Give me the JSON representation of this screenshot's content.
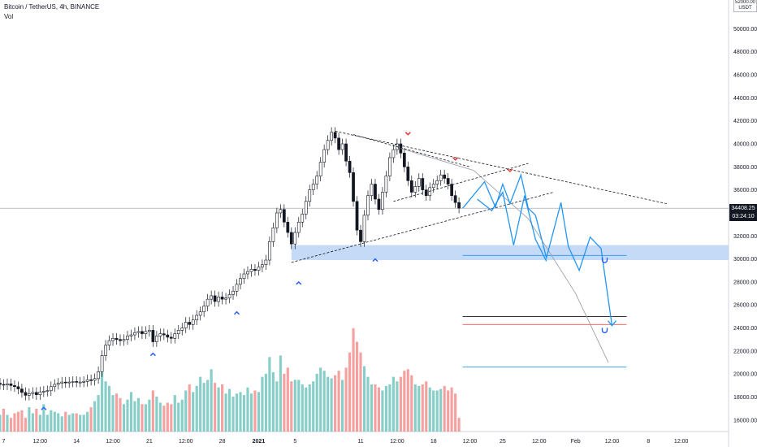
{
  "legend": {
    "title": "Bitcoin / TetherUS, 4h, BINANCE",
    "volume_label": "Vol"
  },
  "price_badge": {
    "price": "34408.25",
    "timer": "03:24:10"
  },
  "corner": {
    "top_label": "52000.00",
    "currency": "USDT"
  },
  "colors": {
    "up": "#26a69a",
    "down": "#ef5350",
    "projection": "#2196f3",
    "zone": "#bbd4f5",
    "marker_up": "#2962ff",
    "marker_down": "#e53935"
  },
  "chart_data": {
    "type": "candlestick",
    "symbol": "Bitcoin / TetherUS",
    "interval": "4h",
    "exchange": "BINANCE",
    "ylim": [
      15000,
      52500
    ],
    "xlim": [
      0,
      200
    ],
    "y_ticks": [
      "16000.00",
      "18000.00",
      "20000.00",
      "22000.00",
      "24000.00",
      "26000.00",
      "28000.00",
      "30000.00",
      "32000.00",
      "34000.00",
      "36000.00",
      "38000.00",
      "40000.00",
      "42000.00",
      "44000.00",
      "46000.00",
      "48000.00",
      "50000.00"
    ],
    "x_ticks": [
      {
        "label": "7",
        "x": 1
      },
      {
        "label": "12:00",
        "x": 11
      },
      {
        "label": "14",
        "x": 21
      },
      {
        "label": "12:00",
        "x": 31
      },
      {
        "label": "21",
        "x": 41
      },
      {
        "label": "12:00",
        "x": 51
      },
      {
        "label": "28",
        "x": 61
      },
      {
        "label": "2021",
        "x": 71
      },
      {
        "label": "5",
        "x": 81
      },
      {
        "label": "11",
        "x": 99
      },
      {
        "label": "12:00",
        "x": 109
      },
      {
        "label": "18",
        "x": 119
      },
      {
        "label": "12:00",
        "x": 129
      },
      {
        "label": "25",
        "x": 138
      },
      {
        "label": "12:00",
        "x": 148
      },
      {
        "label": "Feb",
        "x": 158
      },
      {
        "label": "12:00",
        "x": 168
      },
      {
        "label": "8",
        "x": 178
      },
      {
        "label": "12:00",
        "x": 187
      }
    ],
    "price_series": [
      [
        0,
        19100
      ],
      [
        1,
        19050
      ],
      [
        2,
        19150
      ],
      [
        3,
        19000
      ],
      [
        4,
        18900
      ],
      [
        5,
        18700
      ],
      [
        6,
        18400
      ],
      [
        7,
        18150
      ],
      [
        8,
        18300
      ],
      [
        9,
        18400
      ],
      [
        10,
        18200
      ],
      [
        11,
        18450
      ],
      [
        12,
        18500
      ],
      [
        13,
        18550
      ],
      [
        14,
        18900
      ],
      [
        15,
        19100
      ],
      [
        16,
        19200
      ],
      [
        17,
        19300
      ],
      [
        18,
        19250
      ],
      [
        19,
        19300
      ],
      [
        20,
        19350
      ],
      [
        21,
        19300
      ],
      [
        22,
        19300
      ],
      [
        23,
        19350
      ],
      [
        24,
        19500
      ],
      [
        25,
        19450
      ],
      [
        26,
        19600
      ],
      [
        27,
        20200
      ],
      [
        28,
        21600
      ],
      [
        29,
        22500
      ],
      [
        30,
        22900
      ],
      [
        31,
        23100
      ],
      [
        32,
        23000
      ],
      [
        33,
        22900
      ],
      [
        34,
        23000
      ],
      [
        35,
        23300
      ],
      [
        36,
        23400
      ],
      [
        37,
        23600
      ],
      [
        38,
        23700
      ],
      [
        39,
        23500
      ],
      [
        40,
        23700
      ],
      [
        41,
        23800
      ],
      [
        42,
        22800
      ],
      [
        43,
        23300
      ],
      [
        44,
        23500
      ],
      [
        45,
        23400
      ],
      [
        46,
        23200
      ],
      [
        47,
        23100
      ],
      [
        48,
        23500
      ],
      [
        49,
        23800
      ],
      [
        50,
        24000
      ],
      [
        51,
        24500
      ],
      [
        52,
        24300
      ],
      [
        53,
        24700
      ],
      [
        54,
        25100
      ],
      [
        55,
        25400
      ],
      [
        56,
        25900
      ],
      [
        57,
        26500
      ],
      [
        58,
        26800
      ],
      [
        59,
        26300
      ],
      [
        60,
        26700
      ],
      [
        61,
        26500
      ],
      [
        62,
        26600
      ],
      [
        63,
        26900
      ],
      [
        64,
        27200
      ],
      [
        65,
        27800
      ],
      [
        66,
        28300
      ],
      [
        67,
        28700
      ],
      [
        68,
        28900
      ],
      [
        69,
        29100
      ],
      [
        70,
        29000
      ],
      [
        71,
        29300
      ],
      [
        72,
        29500
      ],
      [
        73,
        29900
      ],
      [
        74,
        31500
      ],
      [
        75,
        32700
      ],
      [
        76,
        34000
      ],
      [
        77,
        34300
      ],
      [
        78,
        33200
      ],
      [
        79,
        32300
      ],
      [
        80,
        31300
      ],
      [
        81,
        32300
      ],
      [
        82,
        33200
      ],
      [
        83,
        33900
      ],
      [
        84,
        35000
      ],
      [
        85,
        36000
      ],
      [
        86,
        36500
      ],
      [
        87,
        37200
      ],
      [
        88,
        38400
      ],
      [
        89,
        39500
      ],
      [
        90,
        40300
      ],
      [
        91,
        41000
      ],
      [
        92,
        40500
      ],
      [
        93,
        39500
      ],
      [
        94,
        40000
      ],
      [
        95,
        38500
      ],
      [
        96,
        37500
      ],
      [
        97,
        35000
      ],
      [
        98,
        32500
      ],
      [
        99,
        31500
      ],
      [
        100,
        33800
      ],
      [
        101,
        35500
      ],
      [
        102,
        36500
      ],
      [
        103,
        35200
      ],
      [
        104,
        34300
      ],
      [
        105,
        35800
      ],
      [
        106,
        37200
      ],
      [
        107,
        38800
      ],
      [
        108,
        39500
      ],
      [
        109,
        40000
      ],
      [
        110,
        39200
      ],
      [
        111,
        38000
      ],
      [
        112,
        36800
      ],
      [
        113,
        35800
      ],
      [
        114,
        36300
      ],
      [
        115,
        37000
      ],
      [
        116,
        36000
      ],
      [
        117,
        35500
      ],
      [
        118,
        36200
      ],
      [
        119,
        36500
      ],
      [
        120,
        36800
      ],
      [
        121,
        37300
      ],
      [
        122,
        37000
      ],
      [
        123,
        36500
      ],
      [
        124,
        35500
      ],
      [
        125,
        34900
      ],
      [
        126,
        34408
      ]
    ],
    "volume_max": 7000,
    "volume_series": [
      [
        0,
        1100
      ],
      [
        1,
        1500
      ],
      [
        2,
        1100
      ],
      [
        3,
        900
      ],
      [
        4,
        1200
      ],
      [
        5,
        1300
      ],
      [
        6,
        1400
      ],
      [
        7,
        900
      ],
      [
        8,
        1600
      ],
      [
        9,
        1200
      ],
      [
        10,
        1500
      ],
      [
        11,
        1100
      ],
      [
        12,
        1800
      ],
      [
        13,
        1100
      ],
      [
        14,
        1400
      ],
      [
        15,
        1300
      ],
      [
        16,
        1200
      ],
      [
        17,
        1000
      ],
      [
        18,
        1300
      ],
      [
        19,
        1100
      ],
      [
        20,
        1200
      ],
      [
        21,
        1200
      ],
      [
        22,
        1100
      ],
      [
        23,
        1100
      ],
      [
        24,
        1300
      ],
      [
        25,
        1600
      ],
      [
        26,
        2000
      ],
      [
        27,
        2400
      ],
      [
        28,
        3900
      ],
      [
        29,
        3300
      ],
      [
        30,
        3000
      ],
      [
        31,
        2400
      ],
      [
        32,
        2500
      ],
      [
        33,
        2200
      ],
      [
        34,
        1800
      ],
      [
        35,
        2100
      ],
      [
        36,
        2600
      ],
      [
        37,
        2000
      ],
      [
        38,
        2200
      ],
      [
        39,
        1800
      ],
      [
        40,
        1800
      ],
      [
        41,
        2100
      ],
      [
        42,
        2700
      ],
      [
        43,
        2300
      ],
      [
        44,
        1900
      ],
      [
        45,
        1700
      ],
      [
        46,
        1900
      ],
      [
        47,
        1800
      ],
      [
        48,
        2400
      ],
      [
        49,
        1900
      ],
      [
        50,
        2100
      ],
      [
        51,
        2700
      ],
      [
        52,
        3100
      ],
      [
        53,
        2600
      ],
      [
        54,
        3000
      ],
      [
        55,
        3600
      ],
      [
        56,
        3200
      ],
      [
        57,
        3400
      ],
      [
        58,
        4100
      ],
      [
        59,
        3200
      ],
      [
        60,
        2900
      ],
      [
        61,
        3100
      ],
      [
        62,
        2500
      ],
      [
        63,
        2800
      ],
      [
        64,
        2300
      ],
      [
        65,
        2500
      ],
      [
        66,
        2600
      ],
      [
        67,
        2400
      ],
      [
        68,
        2900
      ],
      [
        69,
        2500
      ],
      [
        70,
        2700
      ],
      [
        71,
        2600
      ],
      [
        72,
        3600
      ],
      [
        73,
        3800
      ],
      [
        74,
        4900
      ],
      [
        75,
        3900
      ],
      [
        76,
        3300
      ],
      [
        77,
        5000
      ],
      [
        78,
        3800
      ],
      [
        79,
        4200
      ],
      [
        80,
        3300
      ],
      [
        81,
        3400
      ],
      [
        82,
        3400
      ],
      [
        83,
        3100
      ],
      [
        84,
        2900
      ],
      [
        85,
        3100
      ],
      [
        86,
        3300
      ],
      [
        87,
        3800
      ],
      [
        88,
        4200
      ],
      [
        89,
        4000
      ],
      [
        90,
        3600
      ],
      [
        91,
        3500
      ],
      [
        92,
        3700
      ],
      [
        93,
        4000
      ],
      [
        94,
        3400
      ],
      [
        95,
        4200
      ],
      [
        96,
        5200
      ],
      [
        97,
        6800
      ],
      [
        98,
        5900
      ],
      [
        99,
        5200
      ],
      [
        100,
        4300
      ],
      [
        101,
        3600
      ],
      [
        102,
        3100
      ],
      [
        103,
        3100
      ],
      [
        104,
        2900
      ],
      [
        105,
        2700
      ],
      [
        106,
        3000
      ],
      [
        107,
        3100
      ],
      [
        108,
        3600
      ],
      [
        109,
        3300
      ],
      [
        110,
        3600
      ],
      [
        111,
        4000
      ],
      [
        112,
        4100
      ],
      [
        113,
        3700
      ],
      [
        114,
        3100
      ],
      [
        115,
        3000
      ],
      [
        116,
        3100
      ],
      [
        117,
        3300
      ],
      [
        118,
        2900
      ],
      [
        119,
        2700
      ],
      [
        120,
        2700
      ],
      [
        121,
        2800
      ],
      [
        122,
        3000
      ],
      [
        123,
        2700
      ],
      [
        124,
        2900
      ],
      [
        125,
        2500
      ],
      [
        126,
        900
      ]
    ],
    "trendlines": [
      {
        "name": "upper-resistance",
        "points": [
          [
            92,
            41100
          ],
          [
            183,
            34800
          ]
        ]
      },
      {
        "name": "lower-support",
        "points": [
          [
            80,
            29700
          ],
          [
            152,
            35800
          ]
        ]
      },
      {
        "name": "inner-upper",
        "points": [
          [
            97,
            40800
          ],
          [
            129,
            38000
          ]
        ]
      },
      {
        "name": "inner-lower",
        "points": [
          [
            108,
            35000
          ],
          [
            145,
            38300
          ]
        ]
      }
    ],
    "curve": {
      "name": "parabolic-arc",
      "points": [
        [
          110,
          39600
        ],
        [
          130,
          37700
        ],
        [
          145,
          33500
        ],
        [
          158,
          27000
        ],
        [
          167,
          21000
        ]
      ]
    },
    "zones": [
      {
        "name": "support-zone",
        "x_from": 80,
        "x_to": 200,
        "y_from": 29900,
        "y_to": 31200
      }
    ],
    "levels": [
      {
        "name": "zone-mid-line",
        "price": 30300,
        "x_from": 127,
        "x_to": 172,
        "color": "#2196f3"
      },
      {
        "name": "level-black",
        "price": 25000,
        "x_from": 127,
        "x_to": 172,
        "color": "#131722"
      },
      {
        "name": "level-red",
        "price": 24300,
        "x_from": 127,
        "x_to": 172,
        "color": "#ef5350"
      },
      {
        "name": "level-blue-low",
        "price": 20600,
        "x_from": 127,
        "x_to": 172,
        "color": "#2196f3"
      }
    ],
    "projection": [
      [
        127,
        34400
      ],
      [
        133,
        36700
      ],
      [
        136,
        34500
      ],
      [
        138,
        36500
      ],
      [
        140,
        34800
      ],
      [
        143,
        37300
      ],
      [
        145,
        34400
      ],
      [
        147,
        33800
      ],
      [
        150,
        30100
      ],
      [
        154,
        34900
      ],
      [
        156,
        31100
      ],
      [
        159,
        29000
      ],
      [
        162,
        31900
      ],
      [
        165,
        30900
      ],
      [
        168,
        24200
      ]
    ],
    "projection_alt": [
      [
        131,
        35200
      ],
      [
        135,
        34200
      ],
      [
        138,
        35800
      ],
      [
        141,
        31200
      ],
      [
        144,
        35500
      ],
      [
        147,
        31700
      ],
      [
        150,
        29800
      ]
    ],
    "markers_up": [
      [
        12,
        17100
      ],
      [
        42,
        21800
      ],
      [
        65,
        25400
      ],
      [
        82,
        28000
      ],
      [
        103,
        30000
      ]
    ],
    "markers_down": [
      [
        112,
        40800
      ],
      [
        125,
        38600
      ],
      [
        140,
        37600
      ]
    ],
    "scroll_icons": [
      [
        166,
        29900
      ],
      [
        166,
        23800
      ]
    ]
  }
}
